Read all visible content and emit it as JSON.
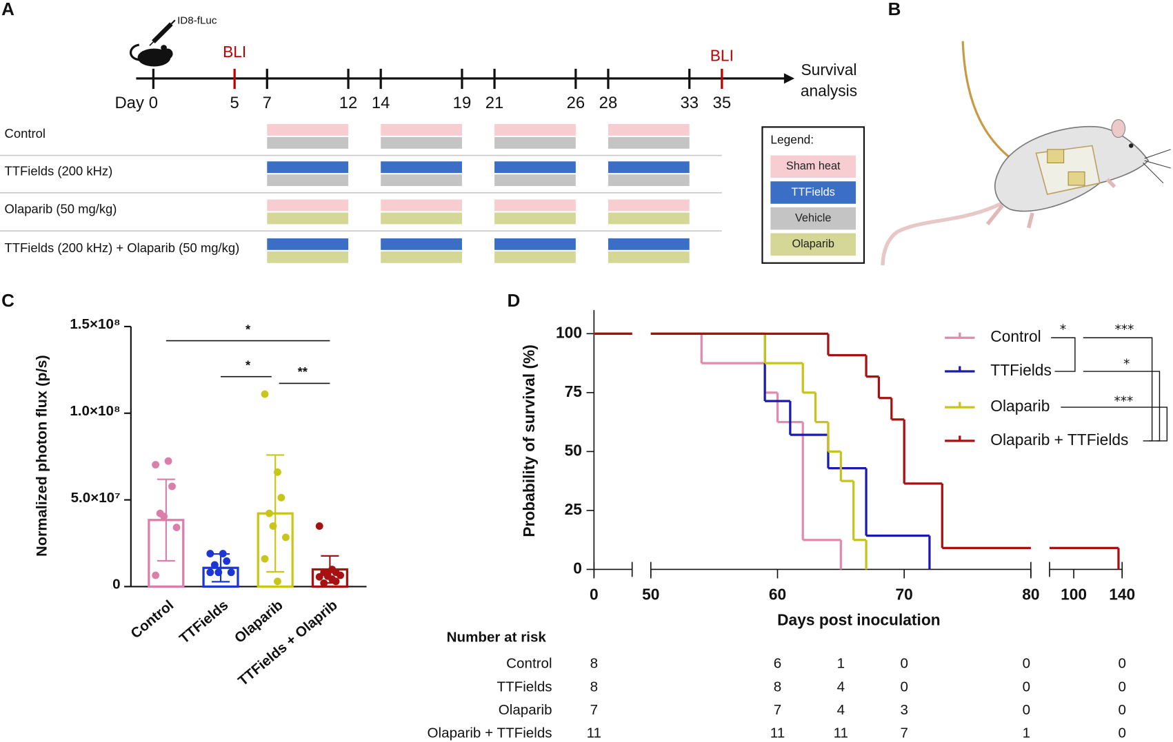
{
  "panel_labels": [
    "A",
    "B",
    "C",
    "D"
  ],
  "timeline": {
    "injection": "ID8-fLuc",
    "day_label": "Day",
    "xlim": [
      0,
      35
    ],
    "days": [
      0,
      5,
      7,
      12,
      14,
      19,
      21,
      26,
      28,
      33,
      35
    ],
    "bli_days": [
      5,
      35
    ],
    "bli_label": "BLI",
    "end_label": [
      "Survival",
      "analysis"
    ],
    "treatment_periods": [
      [
        7,
        12
      ],
      [
        14,
        19
      ],
      [
        21,
        26
      ],
      [
        28,
        33
      ]
    ],
    "groups": [
      {
        "name": "Control",
        "bars": [
          0,
          2
        ]
      },
      {
        "name": "TTFields (200 kHz)",
        "bars": [
          1,
          2
        ]
      },
      {
        "name": "Olaparib (50 mg/kg)",
        "bars": [
          0,
          3
        ]
      },
      {
        "name": "TTFields (200 kHz) + Olaparib (50 mg/kg)",
        "bars": [
          1,
          3
        ]
      }
    ],
    "legend_title": "Legend:",
    "legend": [
      {
        "name": "Sham heat",
        "color": "#f7cdd1"
      },
      {
        "name": "TTFields",
        "color": "#3b6fc6"
      },
      {
        "name": "Vehicle",
        "color": "#c4c4c4"
      },
      {
        "name": "Olaparib",
        "color": "#d5d796"
      }
    ]
  },
  "chart_data": [
    {
      "type": "bar",
      "ylabel": "Normalized photon flux (p/s)",
      "categories": [
        "Control",
        "TTFields",
        "Olaparib",
        "TTFields + Olaprib"
      ],
      "colors": [
        "#d97fa9",
        "#1c36d6",
        "#c9c51b",
        "#a51212"
      ],
      "values": [
        38400000,
        10800000,
        42200000,
        9900000
      ],
      "errors": [
        23500000,
        8000000,
        33700000,
        7800000
      ],
      "points": [
        [
          70300000,
          72400000,
          57800000,
          42200000,
          40500000,
          34100000,
          6500000
        ],
        [
          19000000,
          19000000,
          14700000,
          12500000,
          8200000,
          8200000,
          8200000
        ],
        [
          111000000,
          66000000,
          51300000,
          42200000,
          34900000,
          28400000,
          16000000,
          3000000
        ],
        [
          34900000,
          9900000,
          8200000,
          8200000,
          7300000,
          6500000,
          5600000,
          4300000,
          3000000,
          2000000,
          6000000
        ]
      ],
      "ylim": [
        0,
        150000000
      ],
      "yticks": [
        0,
        {
          "value": 50000000,
          "label": "5.0×10⁷"
        },
        {
          "value": 100000000,
          "label": "1.0×10⁸"
        },
        {
          "value": 150000000,
          "label": "1.5×10⁸"
        }
      ],
      "significance": [
        {
          "pair": [
            0,
            3
          ],
          "label": "*"
        },
        {
          "pair": [
            1,
            2
          ],
          "label": "*"
        },
        {
          "pair": [
            2,
            3
          ],
          "label": "**"
        }
      ]
    },
    {
      "type": "line",
      "step": true,
      "ylabel": "Probability of survival (%)",
      "xlabel": "Days post inoculation",
      "x_segments": [
        [
          0,
          3
        ],
        [
          50,
          80
        ],
        [
          80,
          140
        ]
      ],
      "xticks": [
        0,
        50,
        60,
        70,
        80,
        100,
        140
      ],
      "ylim": [
        0,
        110
      ],
      "yticks": [
        0,
        25,
        50,
        75,
        100
      ],
      "series": [
        {
          "name": "Control",
          "color": "#e08aae",
          "x": [
            0,
            54,
            59,
            60,
            62,
            65
          ],
          "values": [
            100,
            87.5,
            75,
            62.5,
            12.5,
            0
          ]
        },
        {
          "name": "TTFields",
          "color": "#1a1ab0",
          "x": [
            0,
            59,
            61,
            64,
            67,
            72
          ],
          "values": [
            100,
            71.4,
            57.1,
            42.9,
            14.3,
            0
          ]
        },
        {
          "name": "Olaparib",
          "color": "#c8c31a",
          "x": [
            0,
            59,
            62,
            63,
            64,
            65,
            66,
            67
          ],
          "values": [
            100,
            87.5,
            75,
            62.5,
            50,
            37.5,
            12.5,
            0
          ]
        },
        {
          "name": "Olaparib + TTFields",
          "color": "#a51111",
          "x": [
            0,
            64,
            67,
            68,
            69,
            70,
            73,
            137
          ],
          "values": [
            100,
            90.9,
            81.8,
            72.7,
            63.6,
            36.4,
            9.1,
            0
          ]
        }
      ],
      "significance": [
        {
          "pair": [
            0,
            1
          ],
          "label": "*"
        },
        {
          "pair": [
            0,
            3
          ],
          "label": "***"
        },
        {
          "pair": [
            1,
            3
          ],
          "label": "*"
        },
        {
          "pair": [
            2,
            3
          ],
          "label": "***"
        }
      ],
      "risk_table": {
        "title": "Number at risk",
        "times": [
          0,
          60,
          65,
          70,
          80,
          140
        ],
        "rows": [
          [
            8,
            6,
            1,
            0,
            0,
            0
          ],
          [
            8,
            8,
            4,
            0,
            0,
            0
          ],
          [
            7,
            7,
            4,
            3,
            0,
            0
          ],
          [
            11,
            11,
            11,
            7,
            1,
            0
          ]
        ]
      }
    }
  ]
}
